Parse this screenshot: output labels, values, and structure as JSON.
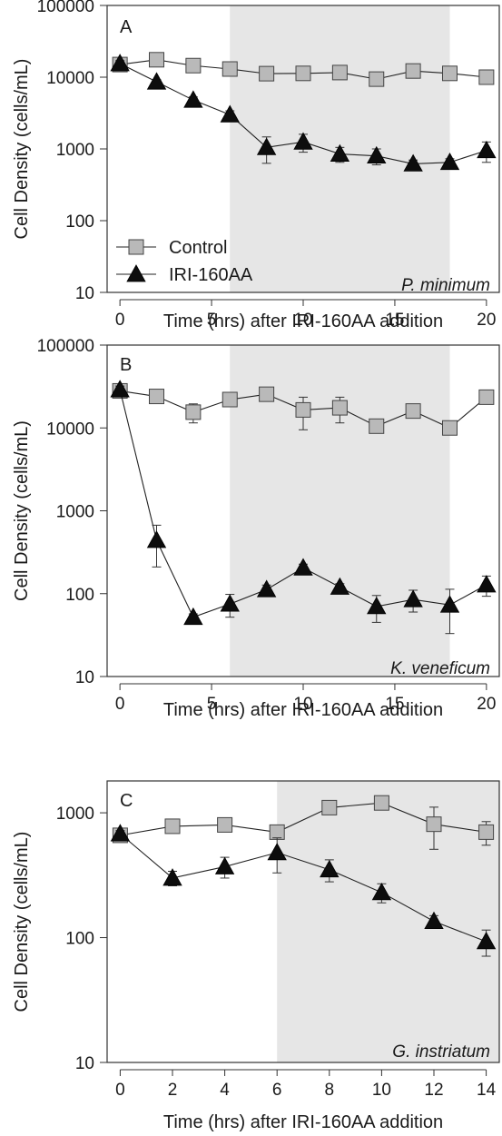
{
  "chart_data": [
    {
      "type": "line",
      "panel_label": "A",
      "annotation": "P. minimum",
      "xlabel": "Time (hrs) after IRI-160AA addition",
      "ylabel": "Cell Density (cells/mL)",
      "x_ticks": [
        "0",
        "5",
        "10",
        "15",
        "20"
      ],
      "y_ticks": [
        "10",
        "100",
        "1000",
        "10000",
        "100000"
      ],
      "yscale": "log",
      "xlim": [
        -0.7,
        20.7
      ],
      "ylim": [
        10,
        100000
      ],
      "shaded_x": [
        6,
        18
      ],
      "legend": {
        "position": "bottom-left",
        "entries": [
          "Control",
          "IRI-160AA"
        ]
      },
      "series": [
        {
          "name": "Control",
          "marker": "square",
          "color": "#b9b9b9",
          "x": [
            0,
            2,
            4,
            6,
            8,
            10,
            12,
            14,
            16,
            18,
            20
          ],
          "y": [
            15000,
            17500,
            14500,
            13000,
            11200,
            11300,
            11600,
            9400,
            12200,
            11300,
            10000
          ],
          "err": [
            1500,
            1500,
            1200,
            1000,
            800,
            900,
            900,
            800,
            2500,
            900,
            1200
          ]
        },
        {
          "name": "IRI-160AA",
          "marker": "triangle",
          "color": "#0d0d0d",
          "x": [
            0,
            2,
            4,
            6,
            8,
            10,
            12,
            14,
            16,
            18,
            20
          ],
          "y": [
            15500,
            8600,
            4800,
            3000,
            1050,
            1250,
            850,
            800,
            620,
            650,
            950
          ],
          "err": [
            1500,
            600,
            500,
            400,
            420,
            350,
            200,
            200,
            80,
            80,
            300
          ]
        }
      ]
    },
    {
      "type": "line",
      "panel_label": "B",
      "annotation": "K. veneficum",
      "xlabel": "Time (hrs) after IRI-160AA addition",
      "ylabel": "Cell Density (cells/mL)",
      "x_ticks": [
        "0",
        "5",
        "10",
        "15",
        "20"
      ],
      "y_ticks": [
        "10",
        "100",
        "1000",
        "10000",
        "100000"
      ],
      "yscale": "log",
      "xlim": [
        -0.7,
        20.7
      ],
      "ylim": [
        10,
        100000
      ],
      "shaded_x": [
        6,
        18
      ],
      "series": [
        {
          "name": "Control",
          "marker": "square",
          "color": "#b9b9b9",
          "x": [
            0,
            2,
            4,
            6,
            8,
            10,
            12,
            14,
            16,
            18,
            20
          ],
          "y": [
            28000,
            24000,
            15500,
            22000,
            25500,
            16500,
            17500,
            10500,
            16000,
            10000,
            23500
          ],
          "err": [
            3000,
            3000,
            4000,
            2500,
            2500,
            7000,
            6000,
            1200,
            2000,
            1200,
            2500
          ]
        },
        {
          "name": "IRI-160AA",
          "marker": "triangle",
          "color": "#0d0d0d",
          "x": [
            0,
            2,
            4,
            6,
            8,
            10,
            12,
            14,
            16,
            18,
            20
          ],
          "y": [
            29000,
            440,
            52,
            75,
            112,
            205,
            120,
            70,
            85,
            73,
            128
          ],
          "err": [
            3000,
            230,
            5,
            23,
            15,
            22,
            12,
            25,
            25,
            40,
            35
          ]
        }
      ]
    },
    {
      "type": "line",
      "panel_label": "C",
      "annotation": "G. instriatum",
      "xlabel": "Time (hrs) after IRI-160AA addition",
      "ylabel": "Cell Density (cells/mL)",
      "x_ticks": [
        "0",
        "2",
        "4",
        "6",
        "8",
        "10",
        "12",
        "14"
      ],
      "y_ticks": [
        "10",
        "100",
        "1000"
      ],
      "yscale": "log",
      "xlim": [
        -0.5,
        14.5
      ],
      "ylim": [
        10,
        1800
      ],
      "shaded_x": [
        6,
        14.5
      ],
      "series": [
        {
          "name": "Control",
          "marker": "square",
          "color": "#b9b9b9",
          "x": [
            0,
            2,
            4,
            6,
            8,
            10,
            12,
            14
          ],
          "y": [
            660,
            780,
            800,
            700,
            1100,
            1200,
            810,
            700
          ],
          "err": [
            50,
            40,
            40,
            40,
            80,
            80,
            300,
            150
          ]
        },
        {
          "name": "IRI-160AA",
          "marker": "triangle",
          "color": "#0d0d0d",
          "x": [
            0,
            2,
            4,
            6,
            8,
            10,
            12,
            14
          ],
          "y": [
            680,
            300,
            370,
            480,
            350,
            230,
            135,
            93
          ],
          "err": [
            40,
            40,
            70,
            150,
            70,
            40,
            15,
            22
          ]
        }
      ]
    }
  ]
}
